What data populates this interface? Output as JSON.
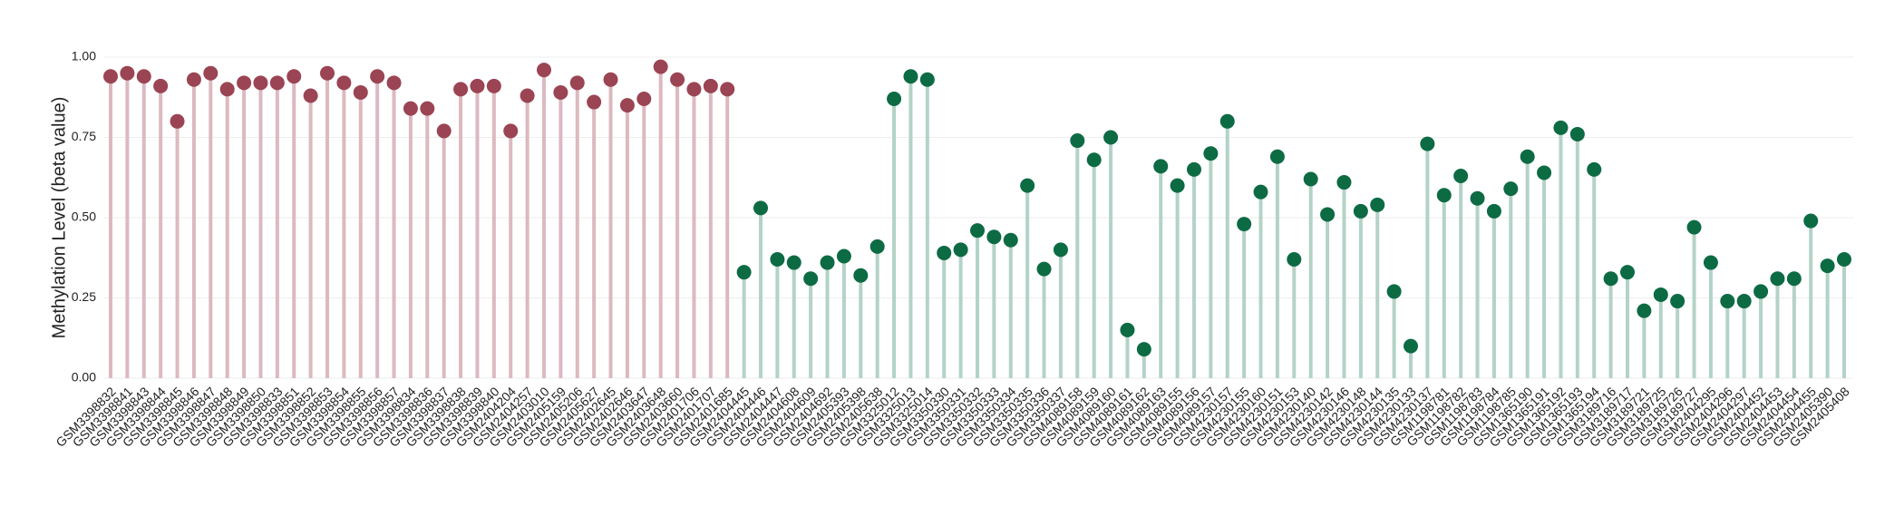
{
  "chart_data": {
    "type": "lollipop",
    "y_label": "Methylation Level (beta value)",
    "ylim": [
      0,
      1
    ],
    "yticks": [
      {
        "value": 0,
        "label": "0.00"
      },
      {
        "value": 0.25,
        "label": "0.25"
      },
      {
        "value": 0.5,
        "label": "0.50"
      },
      {
        "value": 0.75,
        "label": "0.75"
      },
      {
        "value": 1,
        "label": "1.00"
      }
    ],
    "grid": true,
    "groups": [
      {
        "color": "#9b4453",
        "stem_color": "#dcb9c0",
        "categories": [
          "GSM3398832",
          "GSM3398841",
          "GSM3398843",
          "GSM3398844",
          "GSM3398845",
          "GSM3398846",
          "GSM3398847",
          "GSM3398848",
          "GSM3398849",
          "GSM3398850",
          "GSM3398833",
          "GSM3398851",
          "GSM3398852",
          "GSM3398853",
          "GSM3398854",
          "GSM3398855",
          "GSM3398856",
          "GSM3398857",
          "GSM3398834",
          "GSM3398836",
          "GSM3398837",
          "GSM3398838",
          "GSM3398839",
          "GSM3398840",
          "GSM2404204",
          "GSM2404257",
          "GSM2403010",
          "GSM2405159",
          "GSM2405206",
          "GSM2405627",
          "GSM2402645",
          "GSM2402646",
          "GSM2403647",
          "GSM2403648",
          "GSM2403660",
          "GSM2401706",
          "GSM2401707",
          "GSM2401685"
        ],
        "values": [
          0.94,
          0.95,
          0.94,
          0.91,
          0.8,
          0.93,
          0.95,
          0.9,
          0.92,
          0.92,
          0.92,
          0.94,
          0.88,
          0.95,
          0.92,
          0.89,
          0.94,
          0.92,
          0.84,
          0.84,
          0.77,
          0.9,
          0.91,
          0.91,
          0.77,
          0.88,
          0.96,
          0.89,
          0.92,
          0.86,
          0.93,
          0.85,
          0.87,
          0.97,
          0.93,
          0.9,
          0.91,
          0.9
        ]
      },
      {
        "color": "#0d6b44",
        "stem_color": "#b3d3c6",
        "categories": [
          "GSM2404445",
          "GSM2404446",
          "GSM2404447",
          "GSM2404608",
          "GSM2404609",
          "GSM2404692",
          "GSM2405393",
          "GSM2405398",
          "GSM2405638",
          "GSM3325012",
          "GSM3325013",
          "GSM3325014",
          "GSM3350330",
          "GSM3350331",
          "GSM3350332",
          "GSM3350333",
          "GSM3350334",
          "GSM3350335",
          "GSM3350336",
          "GSM3350337",
          "GSM4089158",
          "GSM4089159",
          "GSM4089160",
          "GSM4089161",
          "GSM4089162",
          "GSM4089163",
          "GSM4089155",
          "GSM4089156",
          "GSM4089157",
          "GSM4230157",
          "GSM4230155",
          "GSM4230160",
          "GSM4230151",
          "GSM4230153",
          "GSM4230140",
          "GSM4230142",
          "GSM4230146",
          "GSM4230148",
          "GSM4230144",
          "GSM4230135",
          "GSM4230133",
          "GSM4230137",
          "GSM1198781",
          "GSM1198782",
          "GSM1198783",
          "GSM1198784",
          "GSM1198785",
          "GSM1365190",
          "GSM1365191",
          "GSM1365192",
          "GSM1365193",
          "GSM1365194",
          "GSM3189716",
          "GSM3189717",
          "GSM3189721",
          "GSM3189725",
          "GSM3189726",
          "GSM3189727",
          "GSM2404295",
          "GSM2404296",
          "GSM2404297",
          "GSM2404452",
          "GSM2404453",
          "GSM2404454",
          "GSM2404455",
          "GSM2405390",
          "GSM2405408"
        ],
        "values": [
          0.33,
          0.53,
          0.37,
          0.36,
          0.31,
          0.36,
          0.38,
          0.32,
          0.41,
          0.87,
          0.94,
          0.93,
          0.39,
          0.4,
          0.46,
          0.44,
          0.43,
          0.6,
          0.34,
          0.4,
          0.74,
          0.68,
          0.75,
          0.15,
          0.09,
          0.66,
          0.6,
          0.65,
          0.7,
          0.8,
          0.48,
          0.58,
          0.69,
          0.37,
          0.62,
          0.51,
          0.61,
          0.52,
          0.54,
          0.27,
          0.1,
          0.73,
          0.57,
          0.63,
          0.56,
          0.52,
          0.59,
          0.69,
          0.64,
          0.78,
          0.76,
          0.65,
          0.31,
          0.33,
          0.21,
          0.26,
          0.24,
          0.47,
          0.36,
          0.24,
          0.24,
          0.27,
          0.31,
          0.31,
          0.49,
          0.35,
          0.37
        ]
      }
    ]
  }
}
